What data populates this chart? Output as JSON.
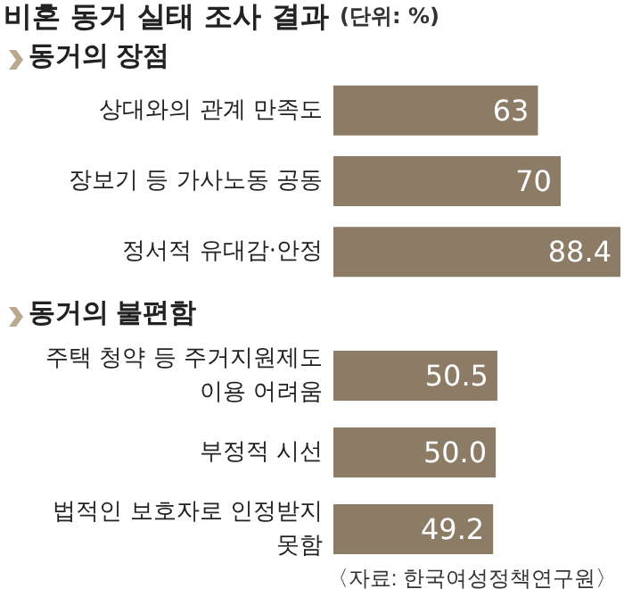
{
  "chart_data": [
    {
      "type": "bar",
      "orientation": "horizontal",
      "title": "비혼 동거 실태 조사 결과",
      "subtitle": "(단위: %)",
      "annotations": [
        "동거의 장점"
      ],
      "categories": [
        "상대와의 관계 만족도",
        "장보기 등 가사노동 공동",
        "정서적 유대감·안정"
      ],
      "values": [
        63,
        70,
        88.4
      ],
      "value_labels": [
        "63",
        "70",
        "88.4"
      ],
      "color": "#8c7b65"
    },
    {
      "type": "bar",
      "orientation": "horizontal",
      "annotations": [
        "동거의 불편함",
        "〈자료: 한국여성정책연구원〉"
      ],
      "categories": [
        "주택 청약 등 주거지원제도\n이용 어려움",
        "부정적 시선",
        "법적인 보호자로 인정받지\n못함"
      ],
      "values": [
        50.5,
        50.0,
        49.2
      ],
      "value_labels": [
        "50.5",
        "50.0",
        "49.2"
      ],
      "color": "#8c7b65"
    }
  ]
}
